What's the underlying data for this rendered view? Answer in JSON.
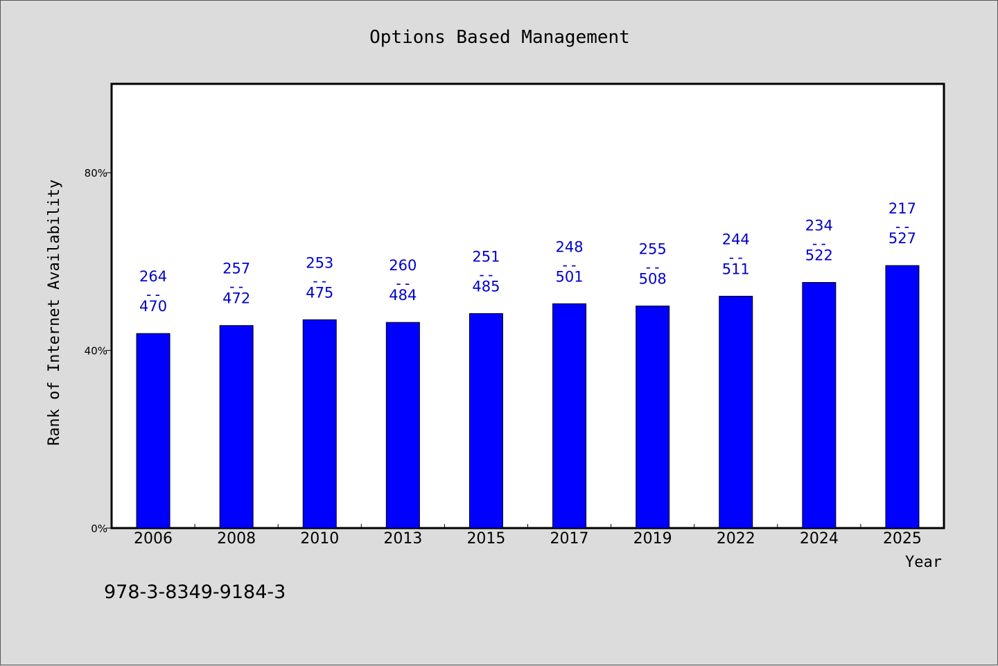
{
  "chart_data": {
    "type": "bar",
    "title": "Options Based Management",
    "xlabel": "Year",
    "ylabel": "Rank of Internet Availability",
    "categories": [
      "2006",
      "2008",
      "2010",
      "2013",
      "2015",
      "2017",
      "2019",
      "2022",
      "2024",
      "2025"
    ],
    "values": [
      43.8,
      45.6,
      46.9,
      46.3,
      48.3,
      50.5,
      50.0,
      52.2,
      55.3,
      59.1
    ],
    "labels_top": [
      "264",
      "257",
      "253",
      "260",
      "251",
      "248",
      "255",
      "244",
      "234",
      "217"
    ],
    "labels_bottom": [
      "470",
      "472",
      "475",
      "484",
      "485",
      "501",
      "508",
      "511",
      "522",
      "527"
    ],
    "label_separator": "--",
    "ylim": [
      0,
      100
    ],
    "yticks": [
      0,
      40,
      80
    ],
    "ytick_labels": [
      "0%",
      "40%",
      "80%"
    ],
    "bar_color": "#0000ff",
    "label_color": "#0000cc",
    "grid": false,
    "legend": "none"
  },
  "footer": {
    "isbn": "978-3-8349-9184-3"
  }
}
